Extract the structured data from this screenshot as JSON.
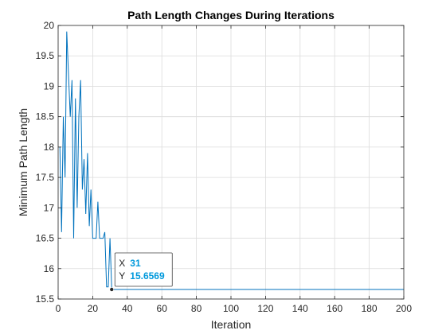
{
  "chart_data": {
    "type": "line",
    "title": "Path Length Changes During Iterations",
    "xlabel": "Iteration",
    "ylabel": "Minimum Path Length",
    "xlim": [
      0,
      200
    ],
    "ylim": [
      15.5,
      20
    ],
    "xticks": [
      0,
      20,
      40,
      60,
      80,
      100,
      120,
      140,
      160,
      180,
      200
    ],
    "yticks": [
      15.5,
      16,
      16.5,
      17,
      17.5,
      18,
      18.5,
      19,
      19.5,
      20
    ],
    "grid": true,
    "line_color": "#0072BD",
    "series": [
      {
        "x": [
          1,
          2,
          3,
          4,
          5,
          6,
          7,
          8,
          9,
          10,
          11,
          12,
          13,
          14,
          15,
          16,
          17,
          18,
          19,
          20,
          21,
          22,
          23,
          24,
          25,
          26,
          27,
          28,
          29,
          30,
          31,
          32,
          200
        ],
        "y": [
          18.0,
          16.6,
          18.5,
          17.5,
          19.9,
          19.2,
          18.5,
          19.1,
          16.5,
          18.8,
          17.0,
          18.5,
          19.1,
          17.3,
          17.8,
          16.9,
          17.9,
          16.7,
          17.3,
          16.5,
          16.5,
          16.5,
          17.1,
          16.5,
          16.5,
          16.5,
          16.6,
          15.7,
          15.7,
          16.5,
          15.6569,
          15.6569,
          15.6569
        ]
      }
    ],
    "datatip": {
      "x_label": "X",
      "y_label": "Y",
      "x_value": "31",
      "y_value": "15.6569",
      "x": 31,
      "y": 15.6569
    }
  }
}
